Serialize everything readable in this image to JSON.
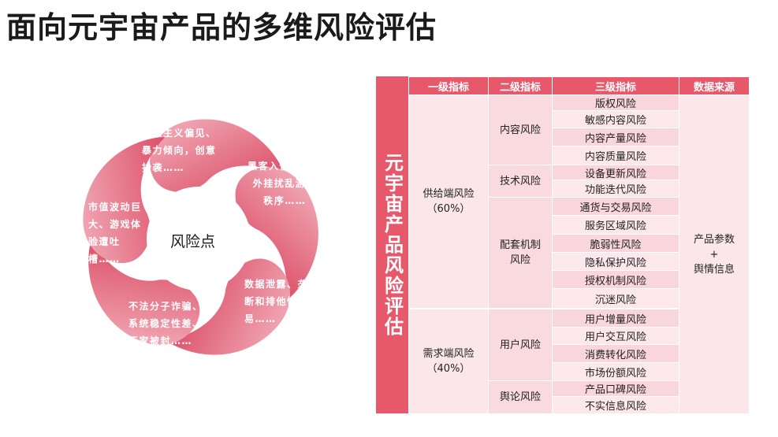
{
  "title": "面向元宇宙产品的多维风险评估",
  "diagram": {
    "center": "风险点",
    "petals": [
      "种族主义偏见、\n暴力倾向，创意\n抄袭……",
      "黑客入侵账户、\n外挂扰乱游戏\n秩序……",
      "数据泄露、垄\n断和排他性交\n易……",
      "不法分子诈骗、\n系统稳定性差、\n玩家被封……",
      "市值波动巨\n大、游戏体\n验遭吐\n槽……"
    ],
    "colors": {
      "petal_light": "#f3b3bf",
      "petal_dark": "#d9425c"
    }
  },
  "table": {
    "side_title": "元宇宙产品风险评估",
    "headers": [
      "一级指标",
      "二级指标",
      "三级指标",
      "数据来源"
    ],
    "level1": [
      {
        "label": "供给端风险\n（60%）"
      },
      {
        "label": "需求端风险\n（40%）"
      }
    ],
    "level2": [
      {
        "label": "内容风险"
      },
      {
        "label": "技术风险"
      },
      {
        "label": "配套机制\n风险"
      },
      {
        "label": "用户风险"
      },
      {
        "label": "舆论风险"
      }
    ],
    "level3": [
      "版权风险",
      "敏感内容风险",
      "内容产量风险",
      "内容质量风险",
      "设备更新风险",
      "功能迭代风险",
      "通货与交易风险",
      "服务区域风险",
      "脆弱性风险",
      "隐私保护风险",
      "授权机制风险",
      "沉迷风险",
      "用户增量风险",
      "用户交互风险",
      "消费转化风险",
      "市场份额风险",
      "产品口碑风险",
      "不实信息风险"
    ],
    "source": "产品参数\n+\n舆情信息",
    "colors": {
      "header": "#e8586b",
      "cell_light": "#fbe7ea",
      "cell_mid": "#f9d6dc"
    }
  }
}
